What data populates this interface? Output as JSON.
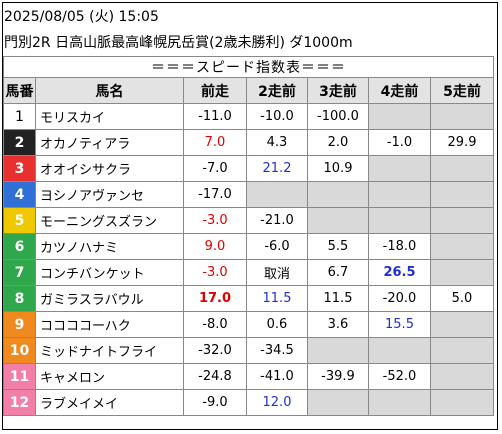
{
  "header": {
    "datetime": "2025/08/05 (火) 15:05",
    "race": "門別2R 日高山脈最高峰幌尻岳賞(2歳未勝利) ダ1000m"
  },
  "table": {
    "title": "＝＝＝スピード指数表＝＝＝",
    "columns": [
      "馬番",
      "馬名",
      "前走",
      "2走前",
      "3走前",
      "4走前",
      "5走前"
    ],
    "rows": [
      {
        "num": "1",
        "bg": "#ffffff",
        "fg": "#000000",
        "name": "モリスカイ",
        "cells": [
          {
            "v": "-11.0"
          },
          {
            "v": "-10.0"
          },
          {
            "v": "-100.0"
          },
          {
            "v": "",
            "e": true
          },
          {
            "v": "",
            "e": true
          }
        ]
      },
      {
        "num": "2",
        "bg": "#222222",
        "fg": "#ffffff",
        "name": "オカノティアラ",
        "cells": [
          {
            "v": "7.0",
            "c": "red"
          },
          {
            "v": "4.3"
          },
          {
            "v": "2.0"
          },
          {
            "v": "-1.0"
          },
          {
            "v": "29.9"
          }
        ]
      },
      {
        "num": "3",
        "bg": "#e8312f",
        "fg": "#ffffff",
        "name": "オオイシサクラ",
        "cells": [
          {
            "v": "-7.0"
          },
          {
            "v": "21.2",
            "c": "blue"
          },
          {
            "v": "10.9"
          },
          {
            "v": "",
            "e": true
          },
          {
            "v": "",
            "e": true
          }
        ]
      },
      {
        "num": "4",
        "bg": "#2f6fd6",
        "fg": "#ffffff",
        "name": "ヨシノアヴァンセ",
        "cells": [
          {
            "v": "-17.0"
          },
          {
            "v": "",
            "e": true
          },
          {
            "v": "",
            "e": true
          },
          {
            "v": "",
            "e": true
          },
          {
            "v": "",
            "e": true
          }
        ]
      },
      {
        "num": "5",
        "bg": "#f0c800",
        "fg": "#ffffff",
        "name": "モーニングスズラン",
        "cells": [
          {
            "v": "-3.0",
            "c": "red"
          },
          {
            "v": "-21.0"
          },
          {
            "v": "",
            "e": true
          },
          {
            "v": "",
            "e": true
          },
          {
            "v": "",
            "e": true
          }
        ]
      },
      {
        "num": "6",
        "bg": "#2ea84a",
        "fg": "#ffffff",
        "name": "カツノハナミ",
        "cells": [
          {
            "v": "9.0",
            "c": "red"
          },
          {
            "v": "-6.0"
          },
          {
            "v": "5.5"
          },
          {
            "v": "-18.0"
          },
          {
            "v": "",
            "e": true
          }
        ]
      },
      {
        "num": "7",
        "bg": "#2ea84a",
        "fg": "#ffffff",
        "name": "コンチバンケット",
        "cells": [
          {
            "v": "-3.0",
            "c": "red"
          },
          {
            "v": "取消"
          },
          {
            "v": "6.7"
          },
          {
            "v": "26.5",
            "c": "blue",
            "b": true
          },
          {
            "v": "",
            "e": true
          }
        ]
      },
      {
        "num": "8",
        "bg": "#2ea84a",
        "fg": "#ffffff",
        "name": "ガミラスラバウル",
        "cells": [
          {
            "v": "17.0",
            "c": "red",
            "b": true
          },
          {
            "v": "11.5",
            "c": "blue"
          },
          {
            "v": "11.5"
          },
          {
            "v": "-20.0"
          },
          {
            "v": "5.0"
          }
        ]
      },
      {
        "num": "9",
        "bg": "#f08a1e",
        "fg": "#ffffff",
        "name": "ココココーハク",
        "cells": [
          {
            "v": "-8.0"
          },
          {
            "v": "0.6"
          },
          {
            "v": "3.6"
          },
          {
            "v": "15.5",
            "c": "blue"
          },
          {
            "v": "",
            "e": true
          }
        ]
      },
      {
        "num": "10",
        "bg": "#f08a1e",
        "fg": "#ffffff",
        "name": "ミッドナイトフライ",
        "cells": [
          {
            "v": "-32.0"
          },
          {
            "v": "-34.5"
          },
          {
            "v": "",
            "e": true
          },
          {
            "v": "",
            "e": true
          },
          {
            "v": "",
            "e": true
          }
        ]
      },
      {
        "num": "11",
        "bg": "#f27fa8",
        "fg": "#ffffff",
        "name": "キャメロン",
        "cells": [
          {
            "v": "-24.8"
          },
          {
            "v": "-41.0"
          },
          {
            "v": "-39.9"
          },
          {
            "v": "-52.0"
          },
          {
            "v": "",
            "e": true
          }
        ]
      },
      {
        "num": "12",
        "bg": "#f27fa8",
        "fg": "#ffffff",
        "name": "ラブメイメイ",
        "cells": [
          {
            "v": "-9.0"
          },
          {
            "v": "12.0",
            "c": "blue"
          },
          {
            "v": "",
            "e": true
          },
          {
            "v": "",
            "e": true
          },
          {
            "v": "",
            "e": true
          }
        ]
      }
    ]
  }
}
